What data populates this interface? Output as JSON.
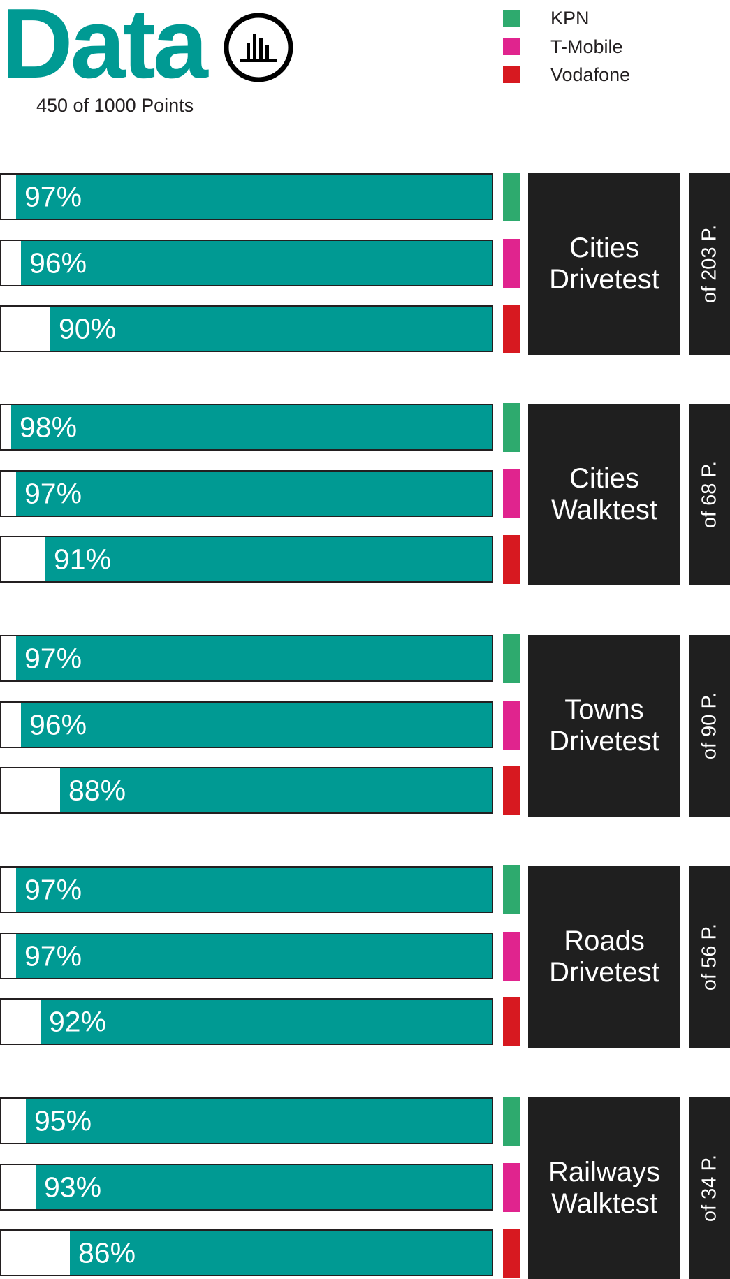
{
  "header": {
    "title": "Data",
    "icon": "bar-chart-icon",
    "subtitle": "450 of 1000 Points"
  },
  "legend": [
    {
      "name": "KPN",
      "color": "#2eaa6e"
    },
    {
      "name": "T-Mobile",
      "color": "#e0248e"
    },
    {
      "name": "Vodafone",
      "color": "#d71920"
    }
  ],
  "colors": {
    "bar_fill": "#009a93",
    "group_box": "#1f1f1f",
    "title": "#009a93"
  },
  "chart_data": {
    "type": "bar",
    "title": "Data",
    "subtitle": "450 of 1000 Points",
    "xlim": [
      0,
      100
    ],
    "unit": "%",
    "series_names": [
      "KPN",
      "T-Mobile",
      "Vodafone"
    ],
    "groups": [
      {
        "name_lines": [
          "Cities",
          "Drivetest"
        ],
        "points_label": "of 203 P.",
        "values": [
          97,
          96,
          90
        ],
        "labels": [
          "97%",
          "96%",
          "90%"
        ]
      },
      {
        "name_lines": [
          "Cities",
          "Walktest"
        ],
        "points_label": "of 68 P.",
        "values": [
          98,
          97,
          91
        ],
        "labels": [
          "98%",
          "97%",
          "91%"
        ]
      },
      {
        "name_lines": [
          "Towns",
          "Drivetest"
        ],
        "points_label": "of 90 P.",
        "values": [
          97,
          96,
          88
        ],
        "labels": [
          "97%",
          "96%",
          "88%"
        ]
      },
      {
        "name_lines": [
          "Roads",
          "Drivetest"
        ],
        "points_label": "of 56 P.",
        "values": [
          97,
          97,
          92
        ],
        "labels": [
          "97%",
          "97%",
          "92%"
        ]
      },
      {
        "name_lines": [
          "Railways",
          "Walktest"
        ],
        "points_label": "of 34 P.",
        "values": [
          95,
          93,
          86
        ],
        "labels": [
          "95%",
          "93%",
          "86%"
        ]
      }
    ]
  }
}
